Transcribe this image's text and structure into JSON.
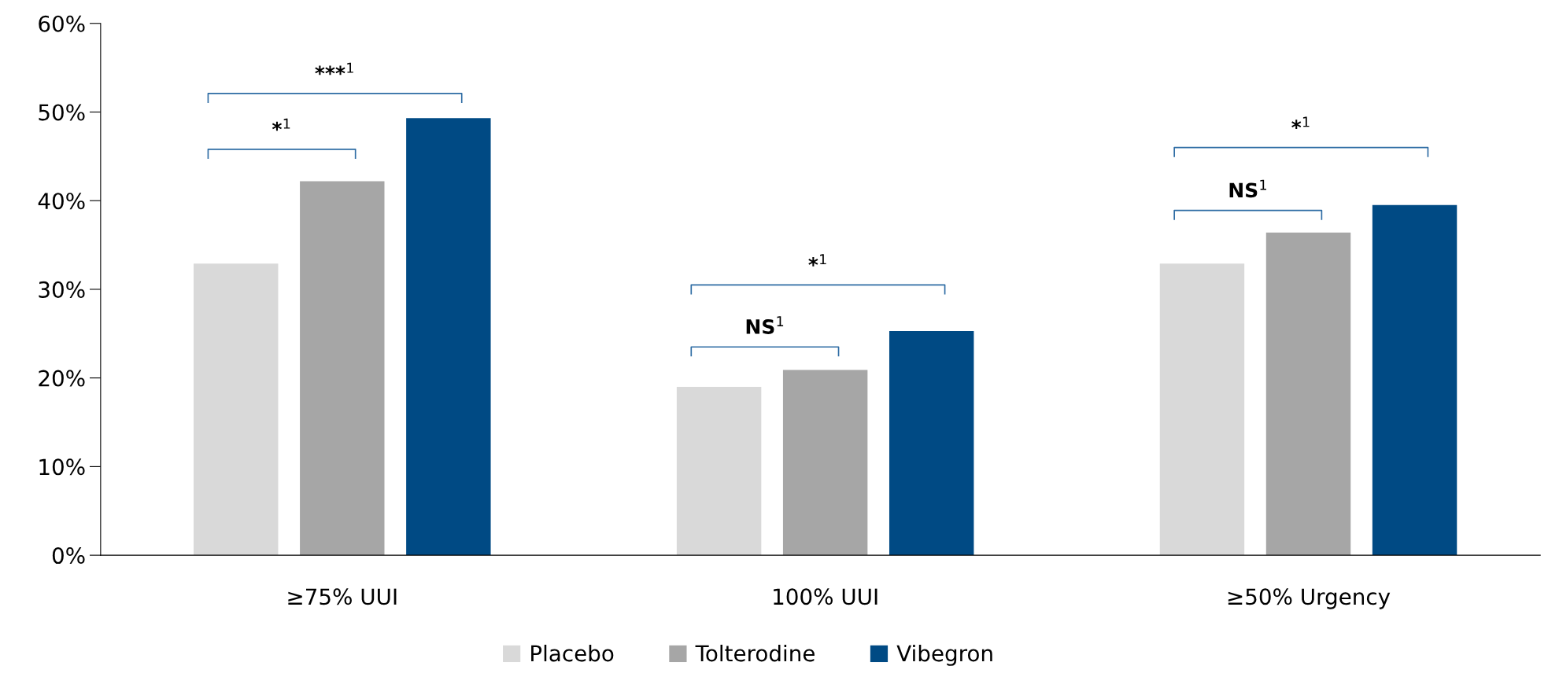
{
  "chart_data": {
    "type": "bar",
    "categories": [
      "≥75% UUI",
      "100% UUI",
      "≥50% Urgency"
    ],
    "series": [
      {
        "name": "Placebo",
        "color": "#d9d9d9",
        "values": [
          32.9,
          19.0,
          32.9
        ]
      },
      {
        "name": "Tolterodine",
        "color": "#a6a6a6",
        "values": [
          42.2,
          20.9,
          36.4
        ]
      },
      {
        "name": "Vibegron",
        "color": "#004a84",
        "values": [
          49.3,
          25.3,
          39.5
        ]
      }
    ],
    "ylim": [
      0,
      60
    ],
    "yticks": [
      {
        "value": 0,
        "label": "0%"
      },
      {
        "value": 10,
        "label": "10%"
      },
      {
        "value": 20,
        "label": "20%"
      },
      {
        "value": 30,
        "label": "30%"
      },
      {
        "value": 40,
        "label": "40%"
      },
      {
        "value": 50,
        "label": "50%"
      },
      {
        "value": 60,
        "label": "60%"
      }
    ],
    "annotations": [
      "***$^{1}$",
      "*$^{1}$",
      "*$^{1}$",
      "NS$^{1}$",
      "*$^{1}$",
      "NS$^{1}$"
    ],
    "grid": false,
    "legend": "bottom"
  }
}
